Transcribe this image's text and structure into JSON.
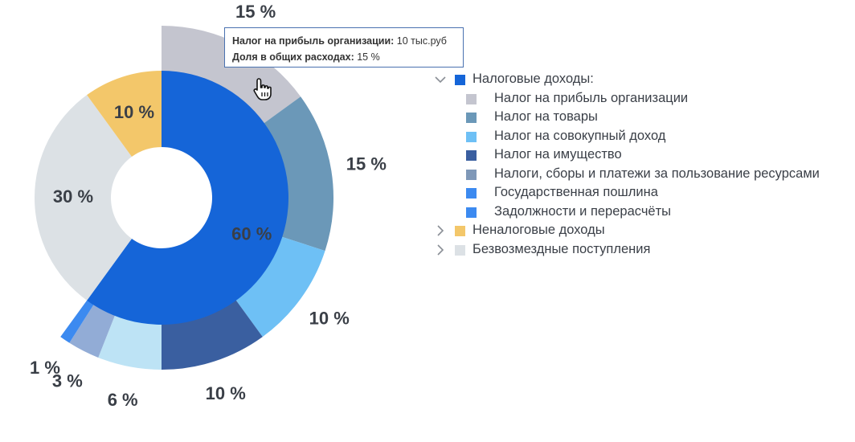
{
  "chart_data": {
    "type": "pie",
    "inner_ring": [
      {
        "label": "60 %",
        "value": 60,
        "color": "#1565d8",
        "name": "Налоговые доходы"
      },
      {
        "label": "30 %",
        "value": 30,
        "color": "#dce1e5",
        "name": "Безвозмездные поступления"
      },
      {
        "label": "10 %",
        "value": 10,
        "color": "#f3c76a",
        "name": "Неналоговые доходы"
      }
    ],
    "outer_ring": [
      {
        "label": "15 %",
        "value": 15,
        "color": "#c4c5cf",
        "name": "Налог на прибыль организации"
      },
      {
        "label": "15 %",
        "value": 15,
        "color": "#6b98b8",
        "name": "Налог на товары"
      },
      {
        "label": "10 %",
        "value": 10,
        "color": "#6ec0f5",
        "name": "Налог на совокупный доход"
      },
      {
        "label": "10 %",
        "value": 10,
        "color": "#3a5fa0",
        "name": "Налог на имущество"
      },
      {
        "label": "6 %",
        "value": 6,
        "color": "#bde3f5",
        "name": "Налоги, сборы и платежи за пользование ресурсами"
      },
      {
        "label": "3 %",
        "value": 3,
        "color": "#92acd6",
        "name": "Государственная пошлина"
      },
      {
        "label": "1 %",
        "value": 1,
        "color": "#3c8af0",
        "name": "Задолжности и перерасчёты"
      }
    ]
  },
  "tooltip": {
    "line1_key": "Налог на прибыль организации:",
    "line1_value": "10 тыс.руб",
    "line2_key": "Доля в общих расходах:",
    "line2_value": "15 %"
  },
  "legend": {
    "groups": [
      {
        "label": "Налоговые доходы:",
        "color": "#1565d8",
        "expanded": true,
        "chevron": "chevron-down-icon"
      },
      {
        "label": "Неналоговые доходы",
        "color": "#f3c76a",
        "expanded": false,
        "chevron": "chevron-right-icon"
      },
      {
        "label": "Безвозмездные поступления",
        "color": "#dce1e5",
        "expanded": false,
        "chevron": "chevron-right-icon"
      }
    ],
    "sub_items": [
      {
        "label": "Налог на прибыль организации",
        "color": "#c4c5cf"
      },
      {
        "label": "Налог на товары",
        "color": "#6b98b8"
      },
      {
        "label": "Налог на совокупный доход",
        "color": "#6ec0f5"
      },
      {
        "label": "Налог на имущество",
        "color": "#3a5fa0"
      },
      {
        "label": "Налоги, сборы и платежи за пользование ресурсами",
        "color": "#7f98b8"
      },
      {
        "label": "Государственная пошлина",
        "color": "#3c8af0"
      },
      {
        "label": "Задолжности и перерасчёты",
        "color": "#3c8af0"
      }
    ]
  }
}
